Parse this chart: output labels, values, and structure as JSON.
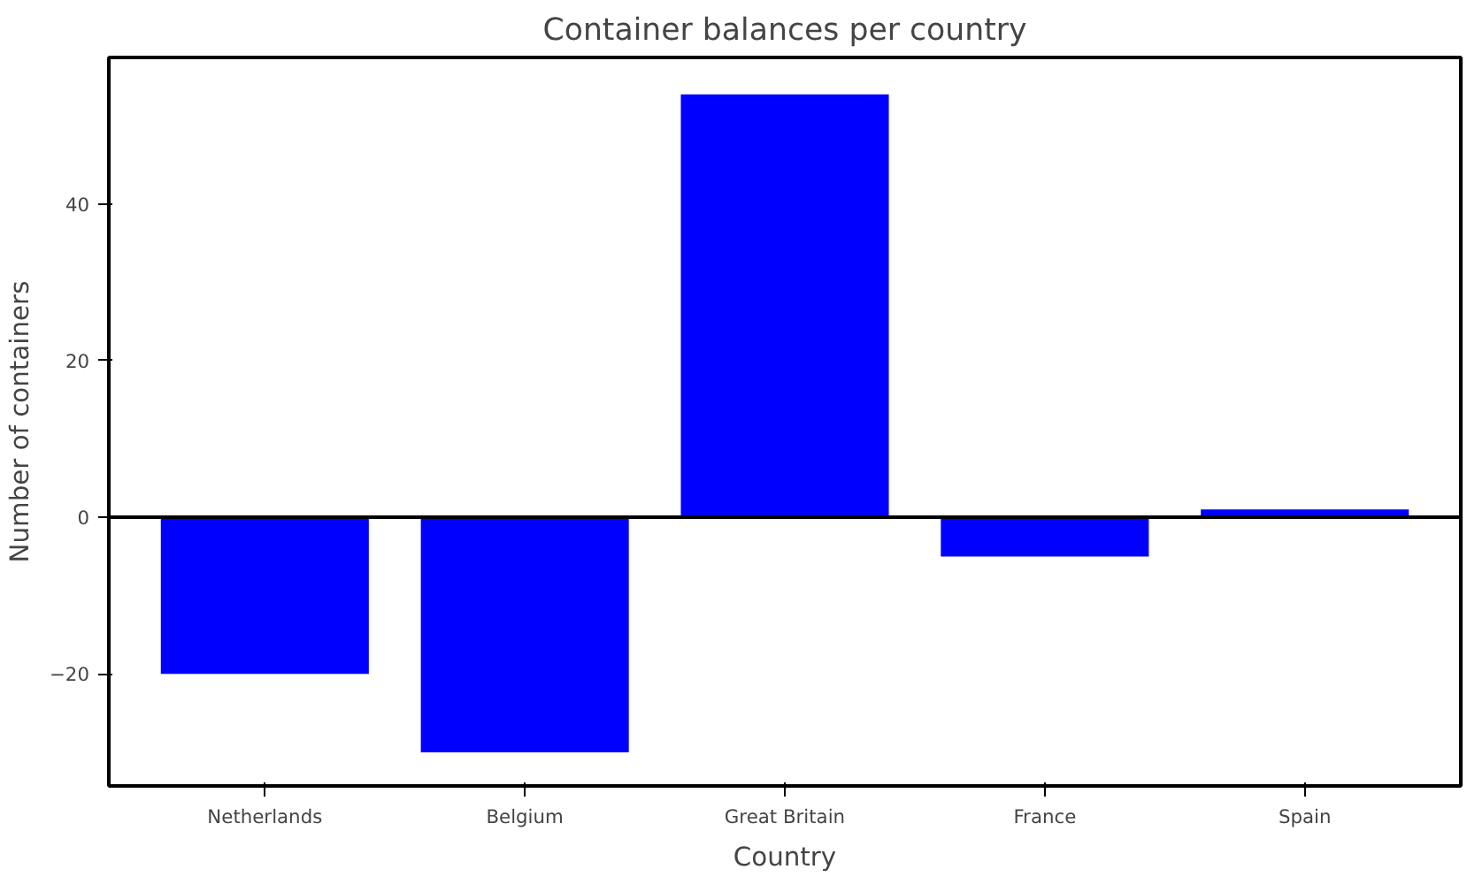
{
  "chart_data": {
    "type": "bar",
    "title": "Container balances per country",
    "xlabel": "Country",
    "ylabel": "Number of containers",
    "categories": [
      "Netherlands",
      "Belgium",
      "Great Britain",
      "France",
      "Spain"
    ],
    "values": [
      -20,
      -30,
      54,
      -5,
      1
    ],
    "color": "#0000ff",
    "ylim": [
      -34.3,
      58.7
    ],
    "yticks": [
      {
        "value": -20,
        "label": "−20"
      },
      0,
      20,
      40
    ],
    "grid": false,
    "ref_lines": [
      {
        "axis": "y",
        "value": 0,
        "color": "#000000",
        "line_style": "solid"
      }
    ]
  }
}
